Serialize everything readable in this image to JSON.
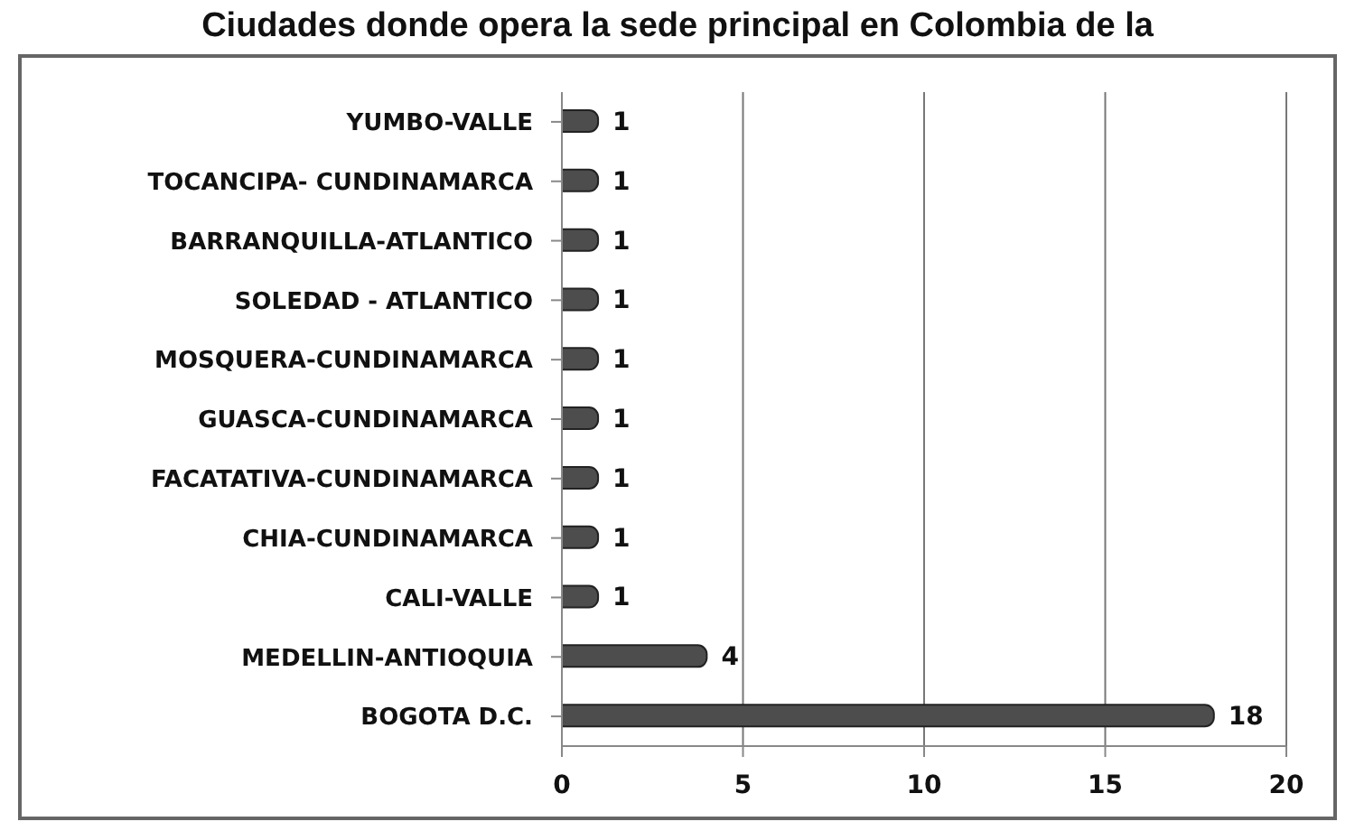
{
  "chart_data": {
    "type": "bar",
    "orientation": "horizontal",
    "title": "Ciudades donde opera la sede principal en Colombia de la",
    "categories": [
      "YUMBO-VALLE",
      "TOCANCIPA-  CUNDINAMARCA",
      "BARRANQUILLA-ATLANTICO",
      "SOLEDAD - ATLANTICO",
      "MOSQUERA-CUNDINAMARCA",
      "GUASCA-CUNDINAMARCA",
      "FACATATIVA-CUNDINAMARCA",
      "CHIA-CUNDINAMARCA",
      "CALI-VALLE",
      "MEDELLIN-ANTIOQUIA",
      "BOGOTA D.C."
    ],
    "values": [
      1,
      1,
      1,
      1,
      1,
      1,
      1,
      1,
      1,
      4,
      18
    ],
    "color": "#4d4d4d",
    "xlim": [
      0,
      20
    ],
    "xticks": [
      0,
      5,
      10,
      15,
      20
    ],
    "grid": "x",
    "data_labels": true
  }
}
